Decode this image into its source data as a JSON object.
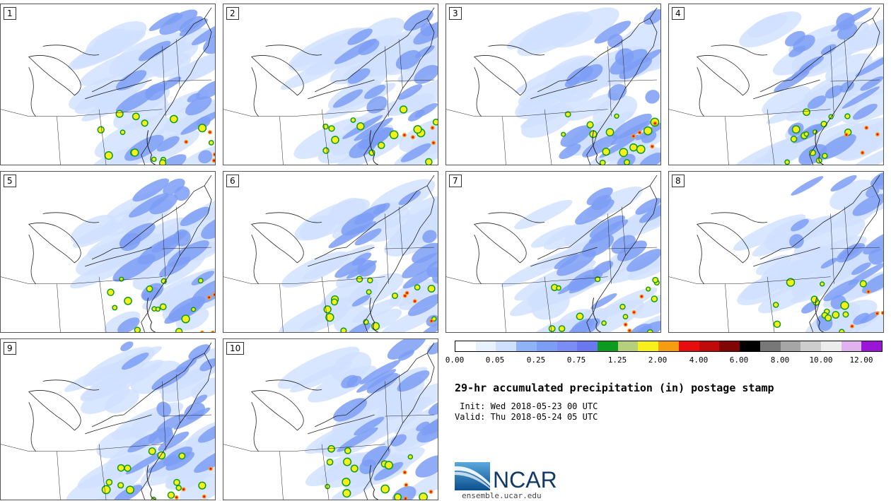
{
  "panels": [
    "1",
    "2",
    "3",
    "4",
    "5",
    "6",
    "7",
    "8",
    "9",
    "10"
  ],
  "colorbar": {
    "colors": [
      "#ffffff",
      "#e8f2ff",
      "#cfe0ff",
      "#8fb3f7",
      "#7d9ef5",
      "#7b8df4",
      "#6a78ef",
      "#0b9b1f",
      "#b4d07a",
      "#f7f01a",
      "#f79c10",
      "#e80d0d",
      "#c00a0a",
      "#800505",
      "#000000",
      "#787878",
      "#a6a6a6",
      "#cdcdcd",
      "#ececec",
      "#e0b3f0",
      "#9a15d6"
    ],
    "ticks": [
      "0.00",
      "0.05",
      "0.25",
      "0.75",
      "1.25",
      "2.00",
      "4.00",
      "6.00",
      "8.00",
      "10.00",
      "12.00"
    ]
  },
  "title": "29-hr accumulated precipitation (in) postage stamp",
  "init_line": " Init: Wed 2018-05-23 00 UTC",
  "valid_line": "Valid: Thu 2018-05-24 05 UTC",
  "logo": {
    "text": "NCAR",
    "url": "ensemble.ucar.edu"
  }
}
